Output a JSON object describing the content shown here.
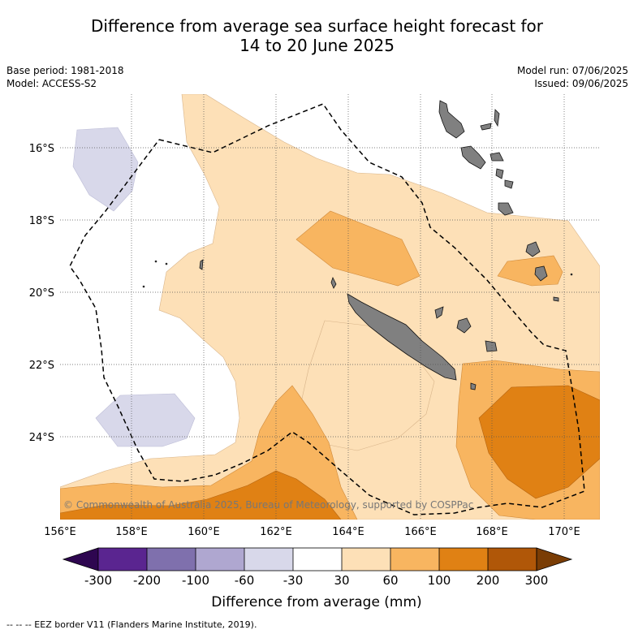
{
  "title": {
    "line1": "Difference from average sea surface height forecast for",
    "line2": "14 to 20 June 2025"
  },
  "meta": {
    "base_period": "Base period: 1981-2018",
    "model": "Model: ACCESS-S2",
    "model_run": "Model run: 07/06/2025",
    "issued": "Issued: 09/06/2025"
  },
  "map": {
    "lon_ticks": [
      "156°E",
      "158°E",
      "160°E",
      "162°E",
      "164°E",
      "166°E",
      "168°E",
      "170°E"
    ],
    "lat_ticks": [
      "16°S",
      "18°S",
      "20°S",
      "22°S",
      "24°S"
    ],
    "copyright": "© Commonwealth of Australia 2025, Bureau of Meteorology, supported by COSPPac",
    "land_color": "#808080",
    "eez_line": "dashed"
  },
  "colorbar": {
    "labels": [
      "-300",
      "-200",
      "-100",
      "-60",
      "-30",
      "30",
      "60",
      "100",
      "200",
      "300"
    ],
    "colors": [
      "#5a2590",
      "#7f70ad",
      "#afa7d0",
      "#d8d8ea",
      "#ffffff",
      "#fde0b7",
      "#f8b560",
      "#e08114",
      "#b05708"
    ],
    "under_color": "#2e0650",
    "over_color": "#7a3d05",
    "title": "Difference from average (mm)"
  },
  "footer": "--  --  -- EEZ border V11 (Flanders Marine Institute, 2019)."
}
